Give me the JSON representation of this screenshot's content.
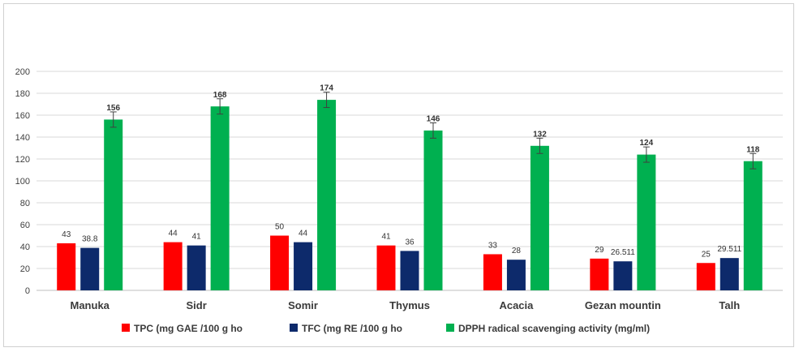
{
  "chart_data": {
    "type": "bar",
    "categories": [
      "Manuka",
      "Sidr",
      "Somir",
      "Thymus",
      "Acacia",
      "Gezan mountin",
      "Talh"
    ],
    "series": [
      {
        "name": "TPC (mg GAE /100 g ho",
        "color": "#ff0000",
        "values": [
          43,
          44,
          50,
          41,
          33,
          29,
          25
        ],
        "labels": [
          "43",
          "44",
          "50",
          "41",
          "33",
          "29",
          "25"
        ]
      },
      {
        "name": "TFC (mg RE /100 g ho",
        "color": "#0d2a6b",
        "values": [
          38.8,
          41,
          44,
          36,
          28,
          26.511,
          29.511
        ],
        "labels": [
          "38.8",
          "41",
          "44",
          "36",
          "28",
          "26.511",
          "29.511"
        ]
      },
      {
        "name": "DPPH radical scavenging activity (mg/ml)",
        "color": "#00b050",
        "values": [
          156,
          168,
          174,
          146,
          132,
          124,
          118
        ],
        "labels": [
          "156",
          "168",
          "174",
          "146",
          "132",
          "124",
          "118"
        ],
        "error": 7
      }
    ],
    "yticks": [
      "0",
      "20",
      "40",
      "60",
      "80",
      "100",
      "120",
      "140",
      "160",
      "180",
      "200"
    ],
    "ylim": [
      0,
      200
    ],
    "grid": true,
    "legend": "bottom"
  }
}
